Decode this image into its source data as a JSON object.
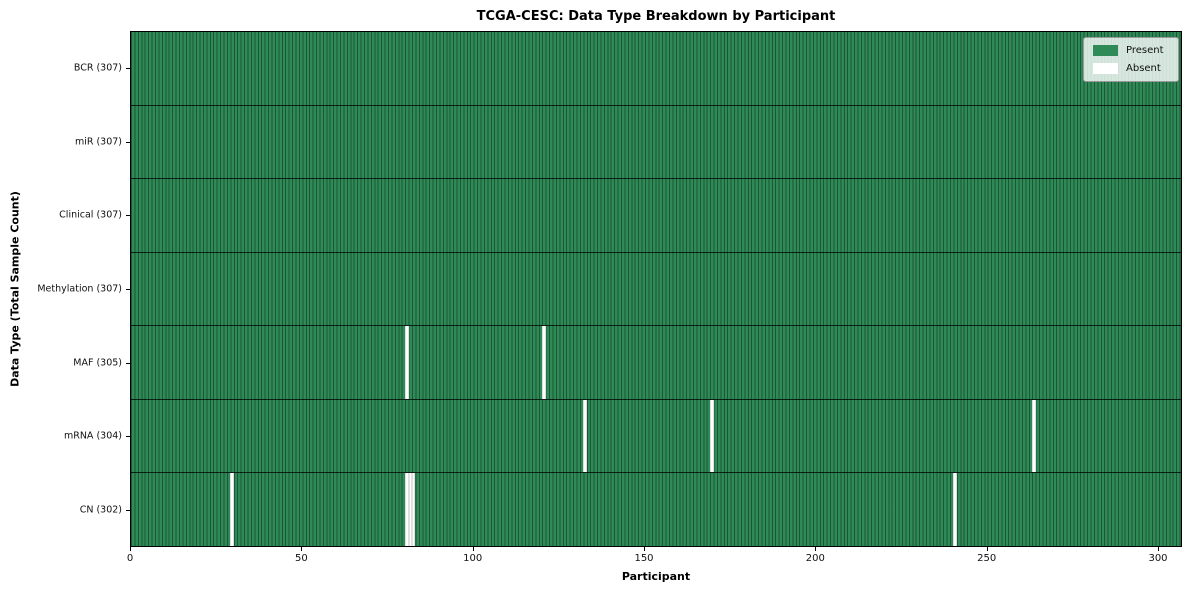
{
  "chart_data": {
    "type": "heatmap",
    "title": "TCGA-CESC: Data Type Breakdown by Participant",
    "xlabel": "Participant",
    "ylabel": "Data Type (Total Sample Count)",
    "n_participants": 307,
    "x_range": [
      0,
      307
    ],
    "x_ticks": [
      0,
      50,
      100,
      150,
      200,
      250,
      300
    ],
    "grid": false,
    "colors": {
      "present": "#2e8b57",
      "absent": "#ffffff",
      "cell_edge": "rgba(0,0,0,0.38)",
      "row_separator": "rgba(0,0,0,0.75)"
    },
    "legend": {
      "position": "upper right",
      "entries": [
        {
          "label": "Present",
          "color": "#2e8b57"
        },
        {
          "label": "Absent",
          "color": "#ffffff"
        }
      ]
    },
    "rows": [
      {
        "data_type": "BCR",
        "label": "BCR (307)",
        "total": 307,
        "absent_participants": []
      },
      {
        "data_type": "miR",
        "label": "miR (307)",
        "total": 307,
        "absent_participants": []
      },
      {
        "data_type": "Clinical",
        "label": "Clinical (307)",
        "total": 307,
        "absent_participants": []
      },
      {
        "data_type": "Methylation",
        "label": "Methylation (307)",
        "total": 307,
        "absent_participants": []
      },
      {
        "data_type": "MAF",
        "label": "MAF (305)",
        "total": 305,
        "absent_participants": [
          80,
          120
        ]
      },
      {
        "data_type": "mRNA",
        "label": "mRNA (304)",
        "total": 304,
        "absent_participants": [
          132,
          169,
          263
        ]
      },
      {
        "data_type": "CN",
        "label": "CN (302)",
        "total": 302,
        "absent_participants": [
          29,
          80,
          81,
          82,
          240
        ]
      }
    ]
  }
}
